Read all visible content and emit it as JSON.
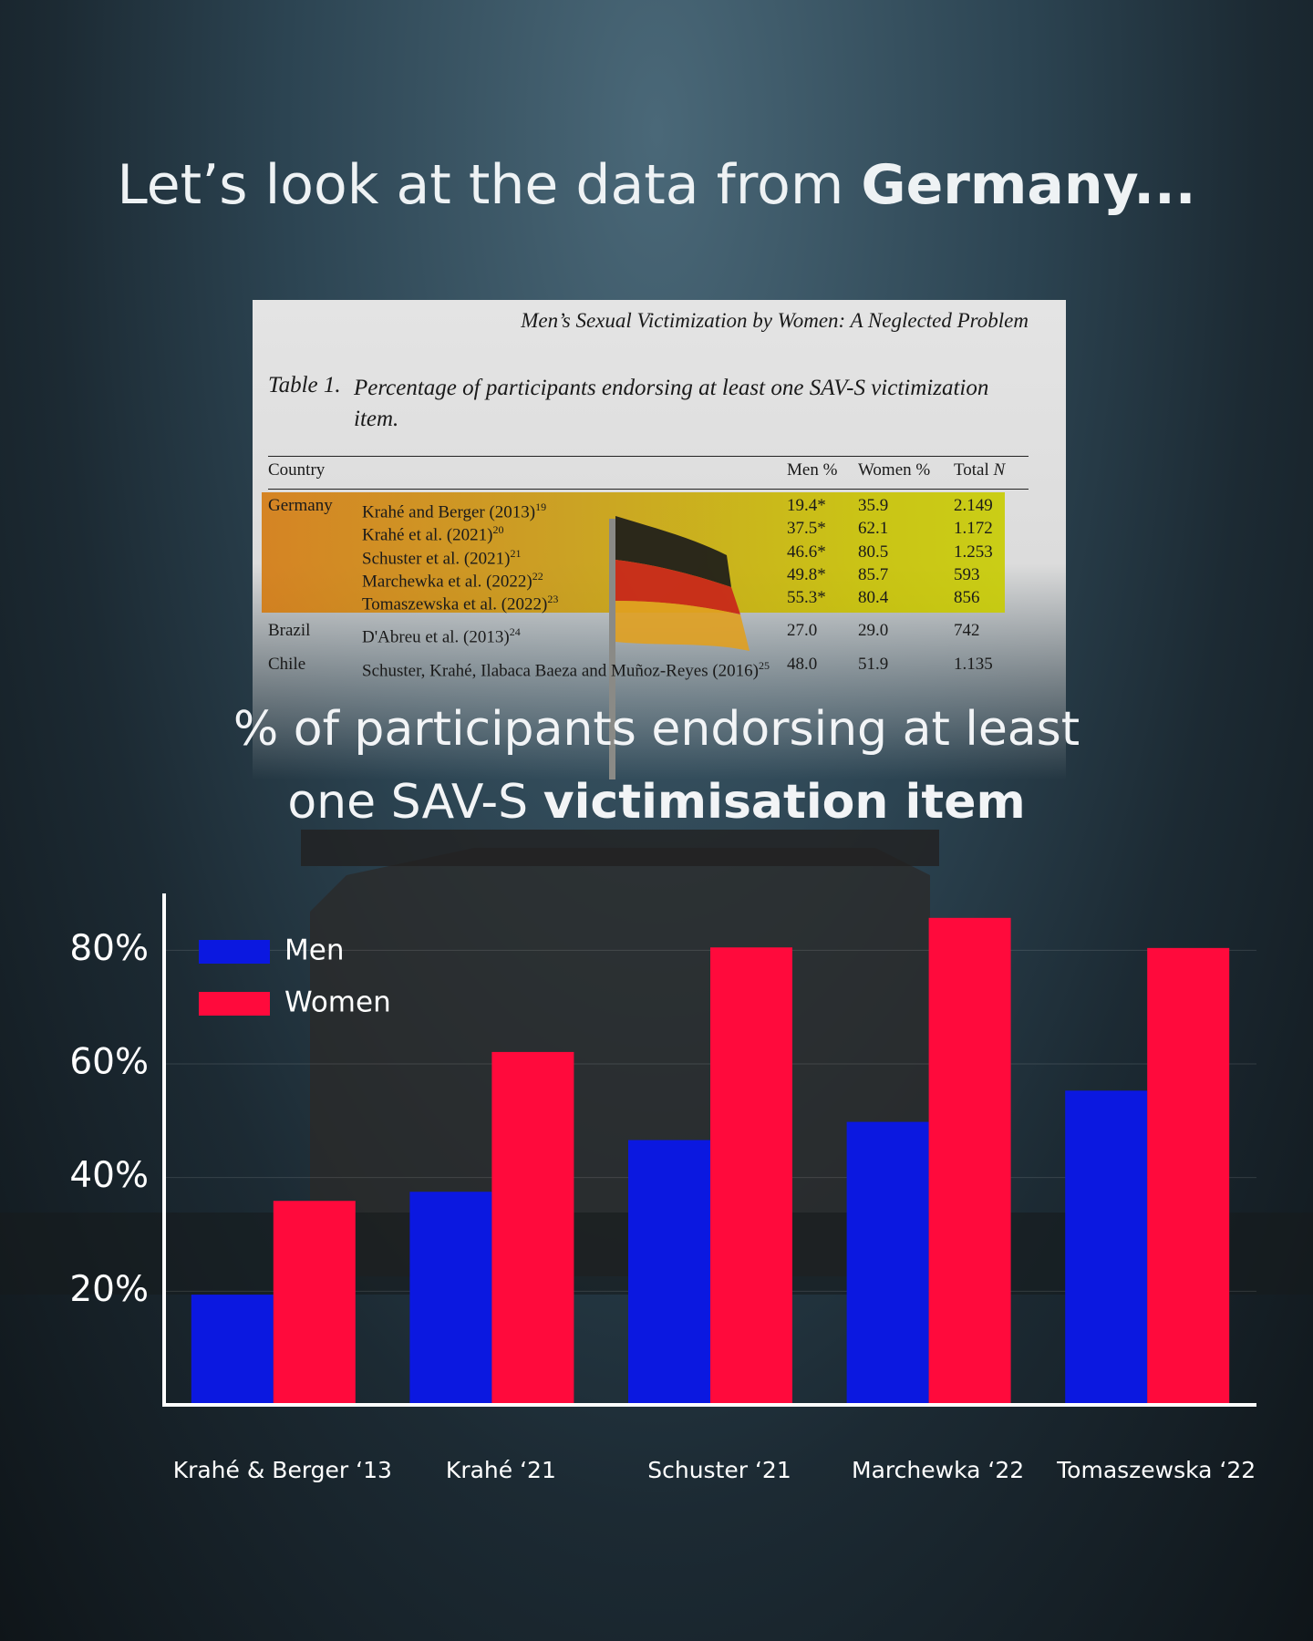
{
  "headline": {
    "text": "Let’s look at the data from ",
    "bold": "Germany..."
  },
  "table": {
    "running_title": "Men’s Sexual Victimization by Women: A Neglected Problem",
    "label": "Table 1.",
    "caption": "Percentage of participants endorsing at least one SAV-S victimization item.",
    "columns": {
      "country": "Country",
      "men": "Men %",
      "women": "Women %",
      "total": "Total",
      "total_italic": "N"
    },
    "rows": [
      {
        "country": "Germany",
        "study": "Krahé and Berger (2013)",
        "ref": "19",
        "men": "19.4*",
        "women": "35.9",
        "total": "2.149"
      },
      {
        "study": "Krahé et al. (2021)",
        "ref": "20",
        "men": "37.5*",
        "women": "62.1",
        "total": "1.172"
      },
      {
        "study": "Schuster et al. (2021)",
        "ref": "21",
        "men": "46.6*",
        "women": "80.5",
        "total": "1.253"
      },
      {
        "study": "Marchewka et al. (2022)",
        "ref": "22",
        "men": "49.8*",
        "women": "85.7",
        "total": "593"
      },
      {
        "study": "Tomaszewska et al. (2022)",
        "ref": "23",
        "men": "55.3*",
        "women": "80.4",
        "total": "856"
      },
      {
        "country": "Brazil",
        "study": "D'Abreu et al. (2013)",
        "ref": "24",
        "men": "27.0",
        "women": "29.0",
        "total": "742"
      },
      {
        "country": "Chile",
        "study": "Schuster, Krahé, Ilabaca Baeza and Muñoz-Reyes (2016)",
        "ref": "25",
        "men": "48.0",
        "women": "51.9",
        "total": "1.135"
      }
    ]
  },
  "chart_data": {
    "type": "bar",
    "title": {
      "regular": "% of participants endorsing at least one SAV-S ",
      "bold": "victimisation item"
    },
    "categories": [
      "Krahé & Berger ‘13",
      "Krahé ‘21",
      "Schuster ‘21",
      "Marchewka ‘22",
      "Tomaszewska ‘22"
    ],
    "series": [
      {
        "name": "Men",
        "color": "#0b18e0",
        "values": [
          19.4,
          37.5,
          46.6,
          49.8,
          55.3
        ]
      },
      {
        "name": "Women",
        "color": "#ff0a3c",
        "values": [
          35.9,
          62.1,
          80.5,
          85.7,
          80.4
        ]
      }
    ],
    "ylim": [
      0,
      90
    ],
    "yticks": [
      {
        "value": 20,
        "label": "20%"
      },
      {
        "value": 40,
        "label": "40%"
      },
      {
        "value": 60,
        "label": "60%"
      },
      {
        "value": 80,
        "label": "80%"
      }
    ],
    "grid": true,
    "legend": "top-left"
  }
}
